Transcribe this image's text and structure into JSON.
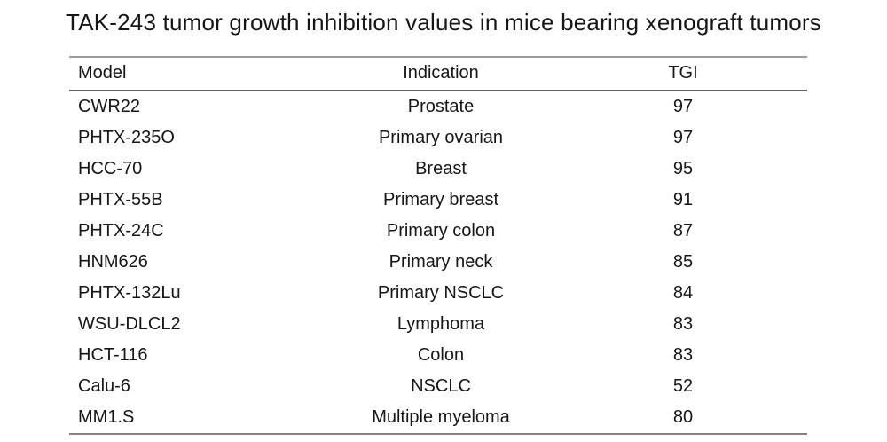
{
  "title": "TAK-243 tumor growth inhibition values in mice bearing xenograft tumors",
  "table": {
    "headers": {
      "model": "Model",
      "indication": "Indication",
      "tgi": "TGI"
    },
    "rows": [
      {
        "model": "CWR22",
        "indication": "Prostate",
        "tgi": "97"
      },
      {
        "model": "PHTX-235O",
        "indication": "Primary ovarian",
        "tgi": "97"
      },
      {
        "model": "HCC-70",
        "indication": "Breast",
        "tgi": "95"
      },
      {
        "model": "PHTX-55B",
        "indication": "Primary breast",
        "tgi": "91"
      },
      {
        "model": "PHTX-24C",
        "indication": "Primary colon",
        "tgi": "87"
      },
      {
        "model": "HNM626",
        "indication": "Primary neck",
        "tgi": "85"
      },
      {
        "model": "PHTX-132Lu",
        "indication": "Primary NSCLC",
        "tgi": "84"
      },
      {
        "model": "WSU-DLCL2",
        "indication": "Lymphoma",
        "tgi": "83"
      },
      {
        "model": "HCT-116",
        "indication": "Colon",
        "tgi": "83"
      },
      {
        "model": "Calu-6",
        "indication": "NSCLC",
        "tgi": "52"
      },
      {
        "model": "MM1.S",
        "indication": "Multiple myeloma",
        "tgi": "80"
      }
    ]
  },
  "colors": {
    "text": "#161616",
    "rule_top": "#9c9c9c",
    "rule_header": "#5f5f5f",
    "rule_bottom": "#828282",
    "background": "#ffffff"
  },
  "chart_data": {
    "type": "table",
    "title": "TAK-243 tumor growth inhibition values in mice bearing xenograft tumors",
    "columns": [
      "Model",
      "Indication",
      "TGI"
    ],
    "rows": [
      [
        "CWR22",
        "Prostate",
        97
      ],
      [
        "PHTX-235O",
        "Primary ovarian",
        97
      ],
      [
        "HCC-70",
        "Breast",
        95
      ],
      [
        "PHTX-55B",
        "Primary breast",
        91
      ],
      [
        "PHTX-24C",
        "Primary colon",
        87
      ],
      [
        "HNM626",
        "Primary neck",
        85
      ],
      [
        "PHTX-132Lu",
        "Primary NSCLC",
        84
      ],
      [
        "WSU-DLCL2",
        "Lymphoma",
        83
      ],
      [
        "HCT-116",
        "Colon",
        83
      ],
      [
        "Calu-6",
        "NSCLC",
        52
      ],
      [
        "MM1.S",
        "Multiple myeloma",
        80
      ]
    ]
  }
}
